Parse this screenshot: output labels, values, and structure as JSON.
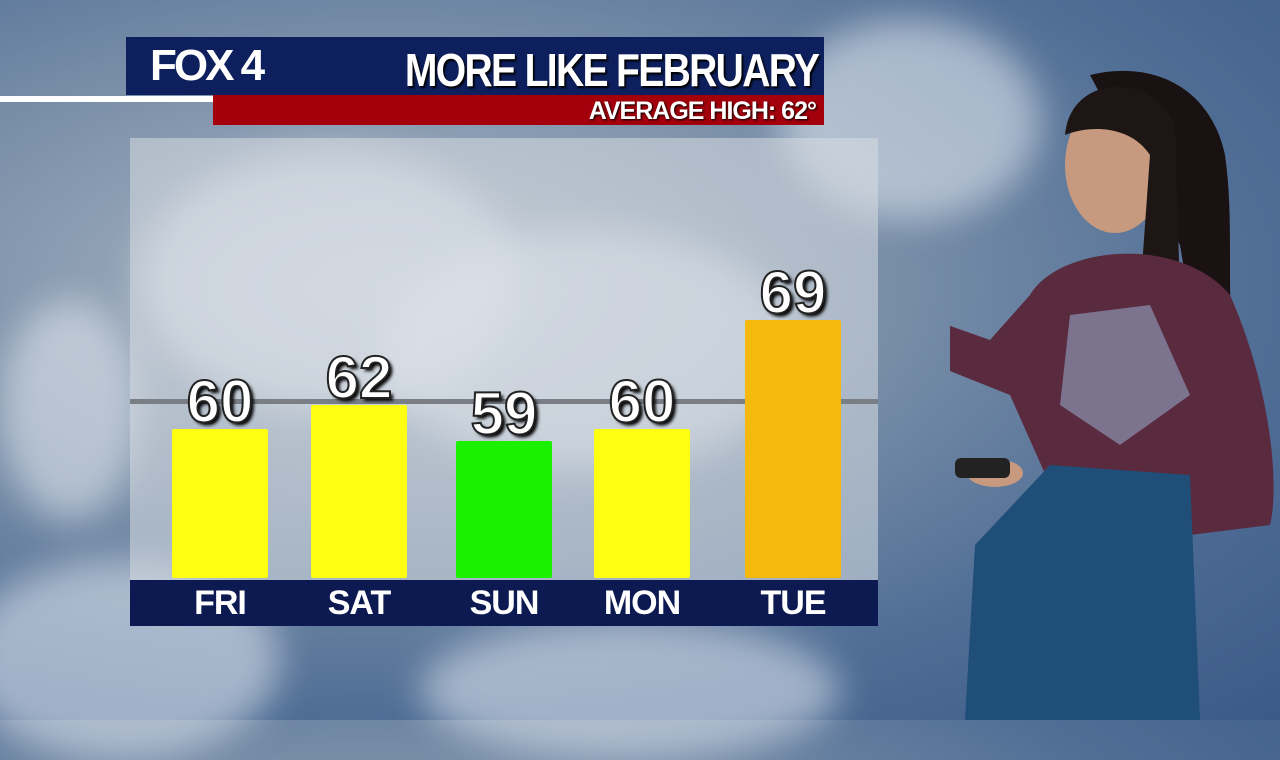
{
  "header": {
    "logo": "FOX 4",
    "title": "MORE LIKE FEBRUARY",
    "subtitle": "AVERAGE HIGH: 62°"
  },
  "colors": {
    "header_bg": "#0d1f5c",
    "subtitle_bg": "#a3000c",
    "near_avg": "#ffff12",
    "below_avg": "#1af000",
    "above_avg": "#f5b80c"
  },
  "chart_data": {
    "type": "bar",
    "title": "MORE LIKE FEBRUARY",
    "categories": [
      "FRI",
      "SAT",
      "SUN",
      "MON",
      "TUE"
    ],
    "values": [
      60,
      62,
      59,
      60,
      69
    ],
    "bar_colors": [
      "#ffff12",
      "#ffff12",
      "#1af000",
      "#ffff12",
      "#f5b80c"
    ],
    "reference_line": {
      "label": "AVERAGE HIGH: 62°",
      "value": 62
    },
    "grid": false,
    "data_labels": [
      "60",
      "62",
      "59",
      "60",
      "69"
    ]
  }
}
